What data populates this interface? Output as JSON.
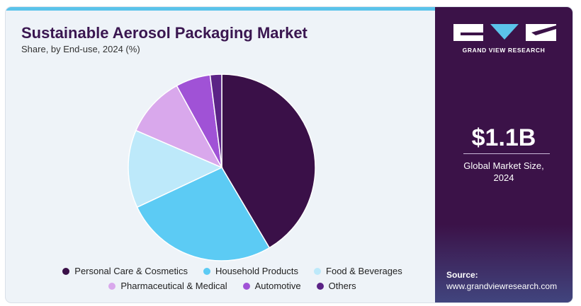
{
  "header": {
    "title": "Sustainable Aerosol Packaging Market",
    "subtitle": "Share, by End-use, 2024 (%)"
  },
  "colors": {
    "accent_bar": "#5bc3ea",
    "title": "#3a1650",
    "sidebar": "#3b1248"
  },
  "chart_data": {
    "type": "pie",
    "title": "Sustainable Aerosol Packaging Market",
    "subtitle": "Share, by End-use, 2024 (%)",
    "start_angle_deg": 0,
    "direction": "clockwise",
    "legend_position": "bottom",
    "categories": [
      "Personal Care & Cosmetics",
      "Household Products",
      "Food & Beverages",
      "Pharmaceutical & Medical",
      "Automotive",
      "Others"
    ],
    "values": [
      41.5,
      26.5,
      13.5,
      10.5,
      6,
      2
    ],
    "colors": [
      "#3a1048",
      "#5ccbf4",
      "#bde9fa",
      "#d9a8ec",
      "#a052d6",
      "#5b2386"
    ]
  },
  "legend": {
    "row1": [
      {
        "label": "Personal Care & Cosmetics",
        "color": "#3a1048"
      },
      {
        "label": "Household Products",
        "color": "#5ccbf4"
      },
      {
        "label": "Food & Beverages",
        "color": "#bde9fa"
      }
    ],
    "row2": [
      {
        "label": "Pharmaceutical & Medical",
        "color": "#d9a8ec"
      },
      {
        "label": "Automotive",
        "color": "#a052d6"
      },
      {
        "label": "Others",
        "color": "#5b2386"
      }
    ]
  },
  "sidebar": {
    "brand": "GRAND VIEW RESEARCH",
    "metric_value": "$1.1B",
    "metric_label_line1": "Global Market Size,",
    "metric_label_line2": "2024",
    "source_label": "Source:",
    "source_url": "www.grandviewresearch.com"
  }
}
